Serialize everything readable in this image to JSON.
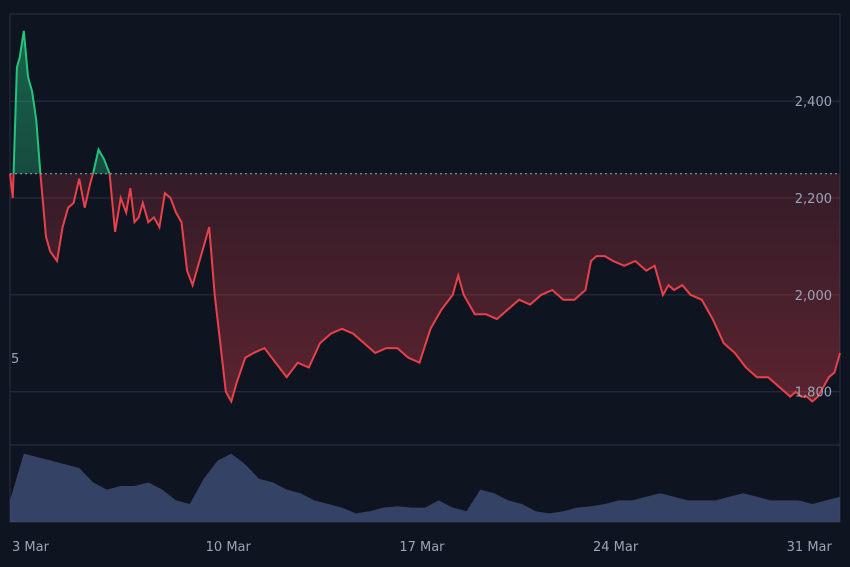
{
  "chart_data": {
    "type": "area",
    "title": "",
    "xlabel": "",
    "ylabel": "",
    "baseline_value": 2250,
    "left_edge_label": "5",
    "ylim": [
      1690,
      2580
    ],
    "yticks": [
      1800,
      2000,
      2200,
      2400
    ],
    "ytick_labels": [
      "1,800",
      "2,000",
      "2,200",
      "2,400"
    ],
    "x_range": [
      0,
      30
    ],
    "xticks": [
      0,
      7,
      14,
      21,
      28
    ],
    "xtick_labels": [
      "3 Mar",
      "10 Mar",
      "17 Mar",
      "24 Mar",
      "31 Mar"
    ],
    "grid": true,
    "colors": {
      "up": "#23c47e",
      "down": "#e8414a",
      "volume": "#3b4a72",
      "background": "#0f1421"
    },
    "price": {
      "x": [
        0,
        0.1,
        0.25,
        0.35,
        0.5,
        0.65,
        0.8,
        0.95,
        1.1,
        1.3,
        1.45,
        1.7,
        1.9,
        2.1,
        2.3,
        2.5,
        2.7,
        2.9,
        3.0,
        3.2,
        3.4,
        3.6,
        3.8,
        4.0,
        4.2,
        4.35,
        4.5,
        4.65,
        4.8,
        5.0,
        5.2,
        5.4,
        5.6,
        5.8,
        6.0,
        6.2,
        6.4,
        6.6,
        6.8,
        7.0,
        7.2,
        7.4,
        7.6,
        7.8,
        8.0,
        8.2,
        8.5,
        8.8,
        9.2,
        9.6,
        10.0,
        10.4,
        10.8,
        11.2,
        11.6,
        12.0,
        12.4,
        12.8,
        13.2,
        13.6,
        14.0,
        14.4,
        14.8,
        15.2,
        15.6,
        16.0,
        16.2,
        16.4,
        16.8,
        17.2,
        17.6,
        18.0,
        18.4,
        18.8,
        19.2,
        19.6,
        20.0,
        20.4,
        20.8,
        21.0,
        21.2,
        21.5,
        21.8,
        22.2,
        22.6,
        23.0,
        23.3,
        23.6,
        23.8,
        24.0,
        24.3,
        24.6,
        25.0,
        25.4,
        25.8,
        26.2,
        26.6,
        27.0,
        27.4,
        27.8,
        28.0,
        28.2,
        28.4,
        28.6,
        28.8,
        29.0,
        29.2,
        29.4,
        29.6,
        29.8,
        30.0
      ],
      "y": [
        2250,
        2200,
        2470,
        2490,
        2545,
        2450,
        2420,
        2360,
        2250,
        2120,
        2090,
        2070,
        2140,
        2180,
        2190,
        2240,
        2180,
        2230,
        2250,
        2300,
        2280,
        2250,
        2130,
        2200,
        2170,
        2220,
        2150,
        2160,
        2190,
        2150,
        2160,
        2140,
        2210,
        2200,
        2170,
        2150,
        2050,
        2020,
        2060,
        2100,
        2140,
        2000,
        1900,
        1800,
        1780,
        1820,
        1870,
        1880,
        1890,
        1860,
        1830,
        1860,
        1850,
        1900,
        1920,
        1930,
        1920,
        1900,
        1880,
        1890,
        1890,
        1870,
        1860,
        1930,
        1970,
        2000,
        2040,
        2000,
        1960,
        1960,
        1950,
        1970,
        1990,
        1980,
        2000,
        2010,
        1990,
        1990,
        2010,
        2070,
        2080,
        2080,
        2070,
        2060,
        2070,
        2050,
        2060,
        2000,
        2020,
        2010,
        2020,
        2000,
        1990,
        1950,
        1900,
        1880,
        1850,
        1830,
        1830,
        1810,
        1800,
        1790,
        1800,
        1790,
        1790,
        1780,
        1790,
        1810,
        1830,
        1840,
        1880
      ]
    },
    "volume": {
      "x": [
        0,
        0.5,
        1.0,
        1.5,
        2.0,
        2.5,
        3.0,
        3.5,
        4.0,
        4.5,
        5.0,
        5.5,
        6.0,
        6.5,
        7.0,
        7.5,
        8.0,
        8.5,
        9.0,
        9.5,
        10.0,
        10.5,
        11.0,
        11.5,
        12.0,
        12.5,
        13.0,
        13.5,
        14.0,
        14.5,
        15.0,
        15.5,
        16.0,
        16.5,
        17.0,
        17.5,
        18.0,
        18.5,
        19.0,
        19.5,
        20.0,
        20.5,
        21.0,
        21.5,
        22.0,
        22.5,
        23.0,
        23.5,
        24.0,
        24.5,
        25.0,
        25.5,
        26.0,
        26.5,
        27.0,
        27.5,
        28.0,
        28.5,
        29.0,
        29.5,
        30.0
      ],
      "values": [
        0.3,
        0.95,
        0.9,
        0.85,
        0.8,
        0.75,
        0.55,
        0.45,
        0.5,
        0.5,
        0.55,
        0.45,
        0.3,
        0.25,
        0.6,
        0.85,
        0.95,
        0.8,
        0.6,
        0.55,
        0.45,
        0.4,
        0.3,
        0.25,
        0.2,
        0.12,
        0.15,
        0.2,
        0.22,
        0.2,
        0.2,
        0.3,
        0.2,
        0.15,
        0.45,
        0.4,
        0.3,
        0.25,
        0.15,
        0.12,
        0.15,
        0.2,
        0.22,
        0.25,
        0.3,
        0.3,
        0.35,
        0.4,
        0.35,
        0.3,
        0.3,
        0.3,
        0.35,
        0.4,
        0.35,
        0.3,
        0.3,
        0.3,
        0.25,
        0.3,
        0.35
      ]
    }
  }
}
